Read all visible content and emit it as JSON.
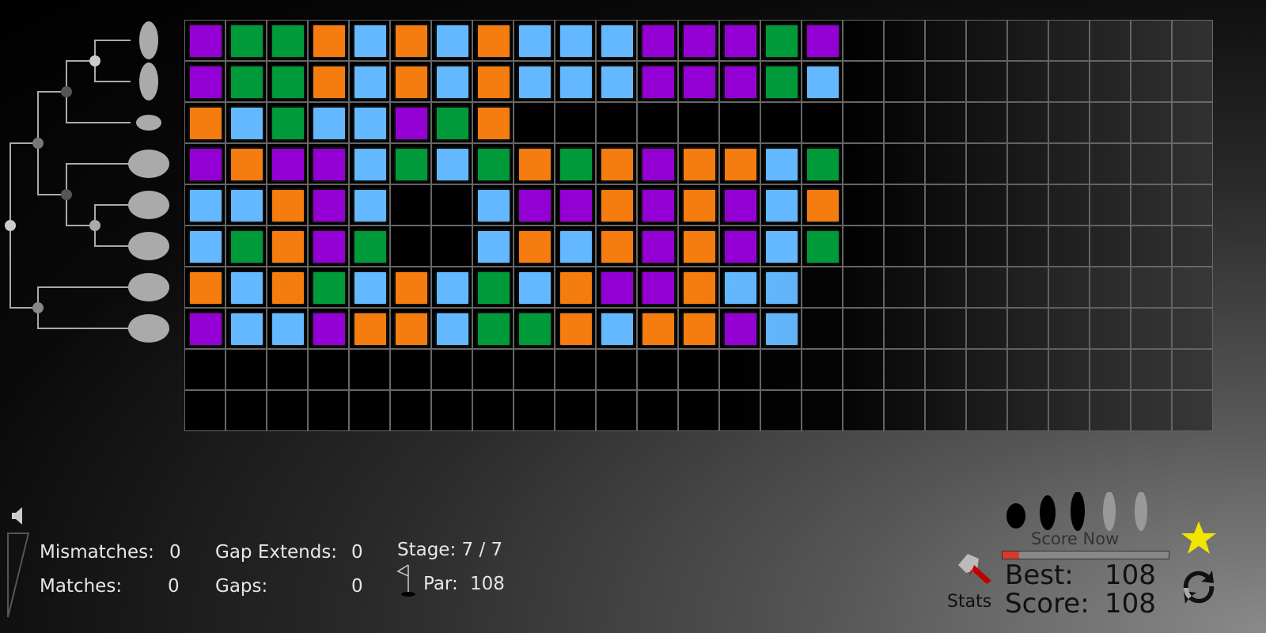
{
  "colors": {
    "P": "#9400d3",
    "G": "#009a3a",
    "O": "#f57c0e",
    "B": "#63b8ff"
  },
  "grid": {
    "columns": 25,
    "rows": 10,
    "sequences": [
      [
        "P",
        "G",
        "G",
        "O",
        "B",
        "O",
        "B",
        "O",
        "B",
        "B",
        "B",
        "P",
        "P",
        "P",
        "G",
        "P"
      ],
      [
        "P",
        "G",
        "G",
        "O",
        "B",
        "O",
        "B",
        "O",
        "B",
        "B",
        "B",
        "P",
        "P",
        "P",
        "G",
        "B"
      ],
      [
        "O",
        "B",
        "G",
        "B",
        "B",
        "P",
        "G",
        "O"
      ],
      [
        "P",
        "O",
        "P",
        "P",
        "B",
        "G",
        "B",
        "G",
        "O",
        "G",
        "O",
        "P",
        "O",
        "O",
        "B",
        "G"
      ],
      [
        "B",
        "B",
        "O",
        "P",
        "B",
        "",
        "",
        "B",
        "P",
        "P",
        "O",
        "P",
        "O",
        "P",
        "B",
        "O"
      ],
      [
        "B",
        "G",
        "O",
        "P",
        "G",
        "",
        "",
        "B",
        "O",
        "B",
        "O",
        "P",
        "O",
        "P",
        "B",
        "G"
      ],
      [
        "O",
        "B",
        "O",
        "G",
        "B",
        "O",
        "B",
        "G",
        "B",
        "O",
        "P",
        "P",
        "O",
        "B",
        "B"
      ],
      [
        "P",
        "B",
        "B",
        "P",
        "O",
        "O",
        "B",
        "G",
        "G",
        "O",
        "B",
        "O",
        "O",
        "P",
        "B"
      ]
    ]
  },
  "species": [
    "human-icon",
    "monkey-icon",
    "rat-icon",
    "cow-icon",
    "dog-icon",
    "bat-icon",
    "elephant-icon",
    "platypus-icon"
  ],
  "stats": {
    "mismatches_label": "Mismatches:",
    "mismatches": "0",
    "matches_label": "Matches:",
    "matches": "0",
    "gap_extends_label": "Gap Extends:",
    "gap_extends": "0",
    "gaps_label": "Gaps:",
    "gaps": "0",
    "stage": "Stage: 7 / 7",
    "par_label": "Par:",
    "par": "108"
  },
  "score": {
    "score_now": "Score Now",
    "progress_percent": 10,
    "best_label": "Best:",
    "best": "108",
    "score_label": "Score:",
    "score": "108",
    "stats_label": "Stats"
  }
}
